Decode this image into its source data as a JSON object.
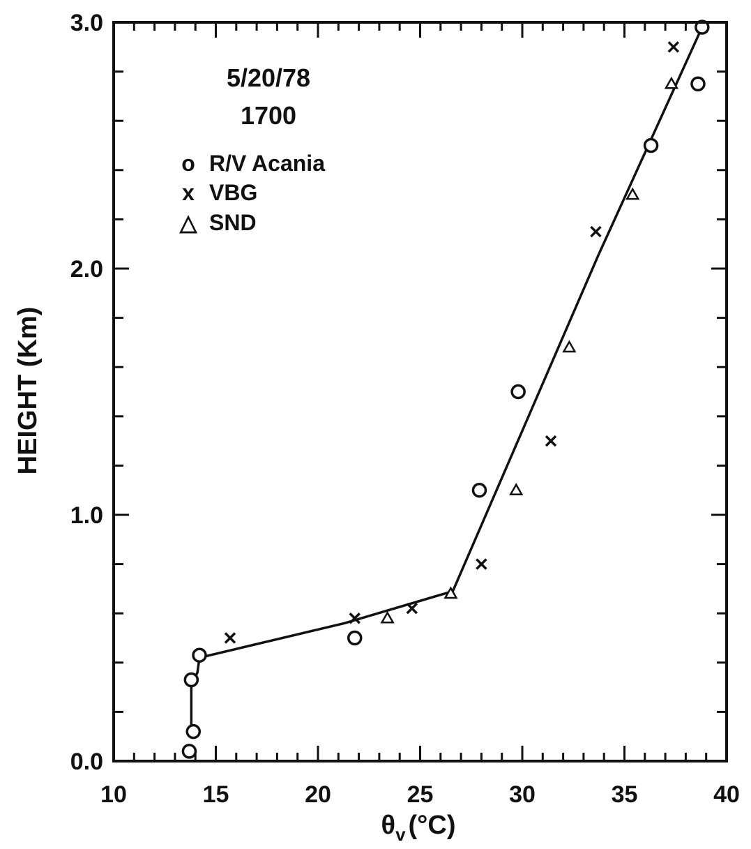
{
  "chart_data": {
    "type": "scatter",
    "title": "",
    "annotations": [
      "5/20/78",
      "1700"
    ],
    "xlabel_main": "θ",
    "xlabel_sub": "v",
    "xlabel_unit": "(°C)",
    "ylabel": "HEIGHT (Km)",
    "xlim": [
      10,
      40
    ],
    "ylim": [
      0,
      3
    ],
    "x_ticks": [
      "10",
      "15",
      "20",
      "25",
      "30",
      "35",
      "40"
    ],
    "y_ticks": [
      "0.0",
      "1.0",
      "2.0",
      "3.0"
    ],
    "grid": false,
    "legend_position": "top-left",
    "legend_glyphs": {
      "R/V Acania": "o",
      "VBG": "x",
      "SND": "△"
    },
    "series": [
      {
        "name": "R/V Acania",
        "marker": "circle",
        "points": [
          [
            13.7,
            0.04
          ],
          [
            13.9,
            0.12
          ],
          [
            13.8,
            0.33
          ],
          [
            14.2,
            0.43
          ],
          [
            21.8,
            0.5
          ],
          [
            27.9,
            1.1
          ],
          [
            29.8,
            1.5
          ],
          [
            36.3,
            2.5
          ],
          [
            38.6,
            2.75
          ],
          [
            38.8,
            2.98
          ]
        ]
      },
      {
        "name": "VBG",
        "marker": "x",
        "points": [
          [
            15.7,
            0.5
          ],
          [
            21.8,
            0.58
          ],
          [
            24.6,
            0.62
          ],
          [
            28.0,
            0.8
          ],
          [
            31.4,
            1.3
          ],
          [
            33.6,
            2.15
          ],
          [
            37.4,
            2.9
          ]
        ]
      },
      {
        "name": "SND",
        "marker": "triangle",
        "points": [
          [
            23.4,
            0.58
          ],
          [
            26.5,
            0.68
          ],
          [
            29.7,
            1.1
          ],
          [
            32.3,
            1.68
          ],
          [
            35.4,
            2.3
          ],
          [
            37.3,
            2.75
          ]
        ]
      }
    ],
    "fit_line": {
      "points": [
        [
          13.8,
          0.12
        ],
        [
          13.8,
          0.31
        ],
        [
          14.1,
          0.36
        ],
        [
          14.2,
          0.42
        ],
        [
          21.3,
          0.56
        ],
        [
          26.6,
          0.69
        ],
        [
          33.7,
          2.05
        ],
        [
          38.8,
          2.98
        ]
      ]
    }
  }
}
